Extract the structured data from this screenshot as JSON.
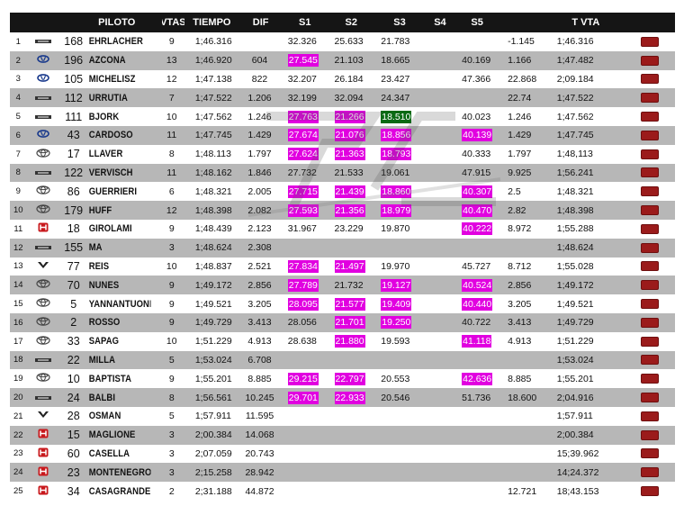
{
  "columns": {
    "pos": "",
    "logo": "",
    "num": "",
    "driver": "PILOTO",
    "laps": "VTAS",
    "time": "TIEMPO",
    "dif": "DIF",
    "s1": "S1",
    "s2": "S2",
    "s3": "S3",
    "s4": "S4",
    "s5": "S5",
    "v1": "",
    "tvta": "T VTA",
    "action": ""
  },
  "highlight_colors": {
    "pink": "#e100e0",
    "green": "#0a6a14",
    "button": "#9b1b1b"
  },
  "rows": [
    {
      "pos": "1",
      "brand": "chevrolet",
      "num": "168",
      "driver": "EHRLACHER",
      "laps": "9",
      "time": "1;46.316",
      "dif": "",
      "s1": "32.326",
      "s1_hl": "",
      "s2": "25.633",
      "s2_hl": "",
      "s3": "21.783",
      "s3_hl": "",
      "s4": "",
      "s5": "",
      "s5_hl": "",
      "v1": "-1.145",
      "tvta": "1;46.316"
    },
    {
      "pos": "2",
      "brand": "hyundai",
      "num": "196",
      "driver": "AZCONA",
      "laps": "13",
      "time": "1;46.920",
      "dif": "604",
      "s1": "27.545",
      "s1_hl": "pink",
      "s2": "21.103",
      "s2_hl": "",
      "s3": "18.665",
      "s3_hl": "",
      "s4": "",
      "s5": "40.169",
      "s5_hl": "",
      "v1": "1.166",
      "tvta": "1;47.482"
    },
    {
      "pos": "3",
      "brand": "hyundai",
      "num": "105",
      "driver": "MICHELISZ",
      "laps": "12",
      "time": "1;47.138",
      "dif": "822",
      "s1": "32.207",
      "s1_hl": "",
      "s2": "26.184",
      "s2_hl": "",
      "s3": "23.427",
      "s3_hl": "",
      "s4": "",
      "s5": "47.366",
      "s5_hl": "",
      "v1": "22.868",
      "tvta": "2;09.184"
    },
    {
      "pos": "4",
      "brand": "chevrolet",
      "num": "112",
      "driver": "URRUTIA",
      "laps": "7",
      "time": "1;47.522",
      "dif": "1.206",
      "s1": "32.199",
      "s1_hl": "",
      "s2": "32.094",
      "s2_hl": "",
      "s3": "24.347",
      "s3_hl": "",
      "s4": "",
      "s5": "",
      "s5_hl": "",
      "v1": "22.74",
      "tvta": "1;47.522"
    },
    {
      "pos": "5",
      "brand": "chevrolet",
      "num": "111",
      "driver": "BJORK",
      "laps": "10",
      "time": "1;47.562",
      "dif": "1.246",
      "s1": "27.763",
      "s1_hl": "pink",
      "s2": "21.266",
      "s2_hl": "pink",
      "s3": "18.510",
      "s3_hl": "green",
      "s4": "",
      "s5": "40.023",
      "s5_hl": "",
      "v1": "1.246",
      "tvta": "1;47.562"
    },
    {
      "pos": "6",
      "brand": "hyundai",
      "num": "43",
      "driver": "CARDOSO",
      "laps": "11",
      "time": "1;47.745",
      "dif": "1.429",
      "s1": "27.674",
      "s1_hl": "pink",
      "s2": "21.076",
      "s2_hl": "pink",
      "s3": "18.856",
      "s3_hl": "pink",
      "s4": "",
      "s5": "40.139",
      "s5_hl": "pink",
      "v1": "1.429",
      "tvta": "1;47.745"
    },
    {
      "pos": "7",
      "brand": "toyota",
      "num": "17",
      "driver": "LLAVER",
      "laps": "8",
      "time": "1;48.113",
      "dif": "1.797",
      "s1": "27.624",
      "s1_hl": "pink",
      "s2": "21.363",
      "s2_hl": "pink",
      "s3": "18.793",
      "s3_hl": "pink",
      "s4": "",
      "s5": "40.333",
      "s5_hl": "",
      "v1": "1.797",
      "tvta": "1;48,113"
    },
    {
      "pos": "8",
      "brand": "chevrolet",
      "num": "122",
      "driver": "VERVISCH",
      "laps": "11",
      "time": "1;48.162",
      "dif": "1.846",
      "s1": "27.732",
      "s1_hl": "",
      "s2": "21.533",
      "s2_hl": "",
      "s3": "19.061",
      "s3_hl": "",
      "s4": "",
      "s5": "47.915",
      "s5_hl": "",
      "v1": "9.925",
      "tvta": "1;56.241"
    },
    {
      "pos": "9",
      "brand": "toyota",
      "num": "86",
      "driver": "GUERRIERI",
      "laps": "6",
      "time": "1;48.321",
      "dif": "2.005",
      "s1": "27.715",
      "s1_hl": "pink",
      "s2": "21.439",
      "s2_hl": "pink",
      "s3": "18.860",
      "s3_hl": "pink",
      "s4": "",
      "s5": "40.307",
      "s5_hl": "pink",
      "v1": "2.5",
      "tvta": "1;48.321"
    },
    {
      "pos": "10",
      "brand": "toyota",
      "num": "179",
      "driver": "HUFF",
      "laps": "12",
      "time": "1;48.398",
      "dif": "2.082",
      "s1": "27.593",
      "s1_hl": "pink",
      "s2": "21.356",
      "s2_hl": "pink",
      "s3": "18.979",
      "s3_hl": "pink",
      "s4": "",
      "s5": "40.470",
      "s5_hl": "pink",
      "v1": "2.82",
      "tvta": "1;48.398"
    },
    {
      "pos": "11",
      "brand": "honda",
      "num": "18",
      "driver": "GIROLAMI",
      "laps": "9",
      "time": "1;48.439",
      "dif": "2.123",
      "s1": "31.967",
      "s1_hl": "",
      "s2": "23.229",
      "s2_hl": "",
      "s3": "19.870",
      "s3_hl": "",
      "s4": "",
      "s5": "40.222",
      "s5_hl": "pink",
      "v1": "8.972",
      "tvta": "1;55.288"
    },
    {
      "pos": "12",
      "brand": "chevrolet",
      "num": "155",
      "driver": "MA",
      "laps": "3",
      "time": "1;48.624",
      "dif": "2.308",
      "s1": "",
      "s1_hl": "",
      "s2": "",
      "s2_hl": "",
      "s3": "",
      "s3_hl": "",
      "s4": "",
      "s5": "",
      "s5_hl": "",
      "v1": "",
      "tvta": "1;48.624"
    },
    {
      "pos": "13",
      "brand": "lynk",
      "num": "77",
      "driver": "REIS",
      "laps": "10",
      "time": "1;48.837",
      "dif": "2.521",
      "s1": "27.834",
      "s1_hl": "pink",
      "s2": "21.497",
      "s2_hl": "pink",
      "s3": "19.970",
      "s3_hl": "",
      "s4": "",
      "s5": "45.727",
      "s5_hl": "",
      "v1": "8.712",
      "tvta": "1;55.028"
    },
    {
      "pos": "14",
      "brand": "toyota",
      "num": "70",
      "driver": "NUNES",
      "laps": "9",
      "time": "1;49.172",
      "dif": "2.856",
      "s1": "27.789",
      "s1_hl": "pink",
      "s2": "21.732",
      "s2_hl": "",
      "s3": "19.127",
      "s3_hl": "pink",
      "s4": "",
      "s5": "40.524",
      "s5_hl": "pink",
      "v1": "2.856",
      "tvta": "1;49.172"
    },
    {
      "pos": "15",
      "brand": "toyota",
      "num": "5",
      "driver": "YANNANTUONI",
      "laps": "9",
      "time": "1;49.521",
      "dif": "3.205",
      "s1": "28.095",
      "s1_hl": "pink",
      "s2": "21.577",
      "s2_hl": "pink",
      "s3": "19.409",
      "s3_hl": "pink",
      "s4": "",
      "s5": "40.440",
      "s5_hl": "pink",
      "v1": "3.205",
      "tvta": "1;49.521"
    },
    {
      "pos": "16",
      "brand": "toyota",
      "num": "2",
      "driver": "ROSSO",
      "laps": "9",
      "time": "1;49.729",
      "dif": "3.413",
      "s1": "28.056",
      "s1_hl": "",
      "s2": "21.701",
      "s2_hl": "pink",
      "s3": "19.250",
      "s3_hl": "pink",
      "s4": "",
      "s5": "40.722",
      "s5_hl": "",
      "v1": "3.413",
      "tvta": "1;49.729"
    },
    {
      "pos": "17",
      "brand": "toyota",
      "num": "33",
      "driver": "SAPAG",
      "laps": "10",
      "time": "1;51.229",
      "dif": "4.913",
      "s1": "28.638",
      "s1_hl": "",
      "s2": "21.880",
      "s2_hl": "pink",
      "s3": "19.593",
      "s3_hl": "",
      "s4": "",
      "s5": "41.118",
      "s5_hl": "pink",
      "v1": "4.913",
      "tvta": "1;51.229"
    },
    {
      "pos": "18",
      "brand": "chevrolet",
      "num": "22",
      "driver": "MILLA",
      "laps": "5",
      "time": "1;53.024",
      "dif": "6.708",
      "s1": "",
      "s1_hl": "",
      "s2": "",
      "s2_hl": "",
      "s3": "",
      "s3_hl": "",
      "s4": "",
      "s5": "",
      "s5_hl": "",
      "v1": "",
      "tvta": "1;53.024"
    },
    {
      "pos": "19",
      "brand": "toyota",
      "num": "10",
      "driver": "BAPTISTA",
      "laps": "9",
      "time": "1;55.201",
      "dif": "8.885",
      "s1": "29.215",
      "s1_hl": "pink",
      "s2": "22.797",
      "s2_hl": "pink",
      "s3": "20.553",
      "s3_hl": "",
      "s4": "",
      "s5": "42.636",
      "s5_hl": "pink",
      "v1": "8.885",
      "tvta": "1;55.201"
    },
    {
      "pos": "20",
      "brand": "chevrolet",
      "num": "24",
      "driver": "BALBI",
      "laps": "8",
      "time": "1;56.561",
      "dif": "10.245",
      "s1": "29.701",
      "s1_hl": "pink",
      "s2": "22.933",
      "s2_hl": "pink",
      "s3": "20.546",
      "s3_hl": "",
      "s4": "",
      "s5": "51.736",
      "s5_hl": "",
      "v1": "18.600",
      "tvta": "2;04.916"
    },
    {
      "pos": "21",
      "brand": "lynk",
      "num": "28",
      "driver": "OSMAN",
      "laps": "5",
      "time": "1;57.911",
      "dif": "11.595",
      "s1": "",
      "s1_hl": "",
      "s2": "",
      "s2_hl": "",
      "s3": "",
      "s3_hl": "",
      "s4": "",
      "s5": "",
      "s5_hl": "",
      "v1": "",
      "tvta": "1;57.911"
    },
    {
      "pos": "22",
      "brand": "honda",
      "num": "15",
      "driver": "MAGLIONE",
      "laps": "3",
      "time": "2;00.384",
      "dif": "14.068",
      "s1": "",
      "s1_hl": "",
      "s2": "",
      "s2_hl": "",
      "s3": "",
      "s3_hl": "",
      "s4": "",
      "s5": "",
      "s5_hl": "",
      "v1": "",
      "tvta": "2;00.384"
    },
    {
      "pos": "23",
      "brand": "honda",
      "num": "60",
      "driver": "CASELLA",
      "laps": "3",
      "time": "2;07.059",
      "dif": "20.743",
      "s1": "",
      "s1_hl": "",
      "s2": "",
      "s2_hl": "",
      "s3": "",
      "s3_hl": "",
      "s4": "",
      "s5": "",
      "s5_hl": "",
      "v1": "",
      "tvta": "15;39.962"
    },
    {
      "pos": "24",
      "brand": "honda",
      "num": "23",
      "driver": "MONTENEGRO",
      "laps": "3",
      "time": "2;15.258",
      "dif": "28.942",
      "s1": "",
      "s1_hl": "",
      "s2": "",
      "s2_hl": "",
      "s3": "",
      "s3_hl": "",
      "s4": "",
      "s5": "",
      "s5_hl": "",
      "v1": "",
      "tvta": "14;24.372"
    },
    {
      "pos": "25",
      "brand": "honda",
      "num": "34",
      "driver": "CASAGRANDE",
      "laps": "2",
      "time": "2;31.188",
      "dif": "44.872",
      "s1": "",
      "s1_hl": "",
      "s2": "",
      "s2_hl": "",
      "s3": "",
      "s3_hl": "",
      "s4": "",
      "s5": "",
      "s5_hl": "",
      "v1": "12.721",
      "tvta": "18;43.153"
    }
  ]
}
